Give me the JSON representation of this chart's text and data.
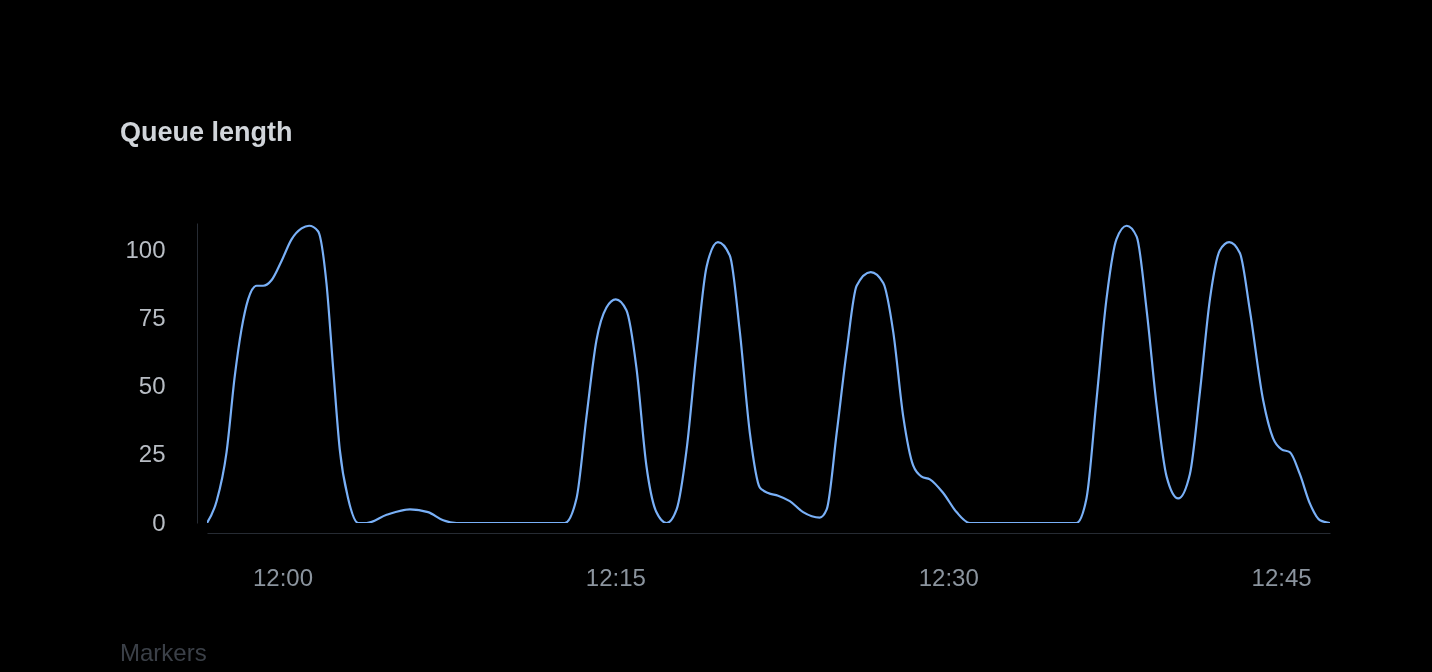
{
  "chart_data": {
    "type": "line",
    "title": "Queue length",
    "x": [
      11.9433,
      11.9505,
      11.958,
      11.9642,
      11.9692,
      11.9742,
      11.9805,
      11.9855,
      11.9917,
      11.9992,
      12.0068,
      12.0143,
      12.02,
      12.0267,
      12.033,
      12.038,
      12.043,
      12.0493,
      12.0568,
      12.0632,
      12.0782,
      12.0957,
      12.1093,
      12.1207,
      12.1307,
      12.212,
      12.2208,
      12.2283,
      12.2358,
      12.2433,
      12.2503,
      12.2583,
      12.2658,
      12.2733,
      12.2808,
      12.2885,
      12.296,
      12.3035,
      12.311,
      12.3185,
      12.327,
      12.336,
      12.3435,
      12.351,
      12.3585,
      12.3647,
      12.3722,
      12.381,
      12.391,
      12.4035,
      12.4087,
      12.4162,
      12.4237,
      12.4312,
      12.4418,
      12.4512,
      12.4587,
      12.4662,
      12.4737,
      12.48,
      12.4862,
      12.4962,
      12.5062,
      12.5162,
      12.5963,
      12.6038,
      12.6113,
      12.6188,
      12.6263,
      12.634,
      12.6415,
      12.649,
      12.6565,
      12.664,
      12.6727,
      12.6815,
      12.689,
      12.6965,
      12.704,
      12.711,
      12.719,
      12.7265,
      12.7365,
      12.744,
      12.7503,
      12.7565,
      12.764,
      12.7717,
      12.7792,
      12.7867
    ],
    "series": [
      {
        "color": "#79b0f7",
        "values": [
          0,
          8,
          26,
          54,
          71,
          82,
          87,
          87,
          89,
          96,
          104,
          108,
          109,
          107,
          88,
          57,
          27,
          9,
          0,
          0,
          3,
          5,
          4,
          1,
          0,
          0,
          9,
          39,
          67,
          79,
          82,
          78,
          57,
          21,
          4,
          0,
          5,
          27,
          63,
          94,
          103,
          98,
          70,
          33,
          13,
          11,
          10,
          8,
          4,
          2,
          5,
          33,
          63,
          87,
          92,
          88,
          70,
          39,
          21,
          17,
          16,
          11,
          4,
          0,
          0,
          9,
          45,
          82,
          104,
          109,
          105,
          78,
          43,
          17,
          9,
          18,
          48,
          82,
          100,
          103,
          99,
          78,
          45,
          31,
          27,
          26,
          18,
          7,
          1,
          0
        ]
      }
    ],
    "xlim": [
      11.9433,
      12.7867
    ],
    "xticks": [
      {
        "value": 12,
        "label": "12:00"
      },
      {
        "value": 12.25,
        "label": "12:15"
      },
      {
        "value": 12.5,
        "label": "12:30"
      },
      {
        "value": 12.75,
        "label": "12:45"
      }
    ],
    "ylim": [
      0,
      110
    ],
    "yticks": [
      0,
      25,
      50,
      75,
      100
    ],
    "line_style": "solid",
    "annotations": [
      "Markers"
    ]
  }
}
